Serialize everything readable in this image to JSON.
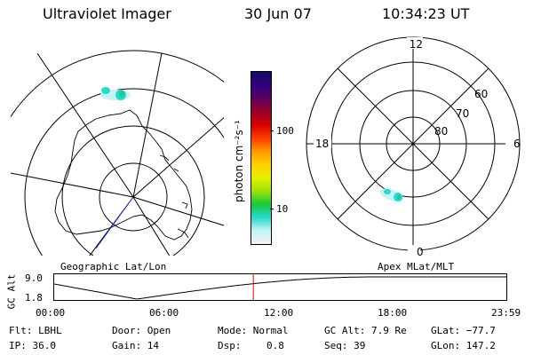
{
  "header": {
    "instrument": "Ultraviolet Imager",
    "date": "30 Jun 07",
    "time": "10:34:23 UT"
  },
  "left_map": {
    "caption": "Geographic Lat/Lon"
  },
  "colorbar": {
    "unit_label": "photon cm⁻²s⁻¹",
    "ticks": [
      "100",
      "10"
    ],
    "stops": [
      "#f2f2f2",
      "#c6f4f4",
      "#2ad8d0",
      "#18c838",
      "#9ee20c",
      "#e6ee00",
      "#ffd000",
      "#ff9a00",
      "#ff3a00",
      "#d80000",
      "#990028",
      "#5a0060",
      "#30007c",
      "#101060"
    ]
  },
  "right_polar": {
    "caption": "Apex MLat/MLT",
    "mlt_labels": {
      "top": "12",
      "left": "18",
      "right": "6",
      "bottom": "0"
    },
    "lat_labels": [
      "60",
      "70",
      "80"
    ]
  },
  "altitude_plot": {
    "axis_label": "GC Alt",
    "y_ticks": [
      "9.0",
      "1.8"
    ],
    "x_ticks": [
      "00:00",
      "06:00",
      "12:00",
      "18:00",
      "23:59"
    ],
    "current_marker_hour": 10.57,
    "marker_color": "#dd0000"
  },
  "status": {
    "filter": "Flt: LBHL",
    "ip": "IP: 36.0",
    "door": "Door: Open",
    "gain": "Gain: 14",
    "mode": "Mode: Normal",
    "dsp_label": "Dsp:",
    "dsp_value": "0.8",
    "gc_alt": "GC Alt: 7.9 Re",
    "seq": "Seq: 39",
    "glat": "GLat: −77.7",
    "glon": "GLon: 147.2"
  }
}
